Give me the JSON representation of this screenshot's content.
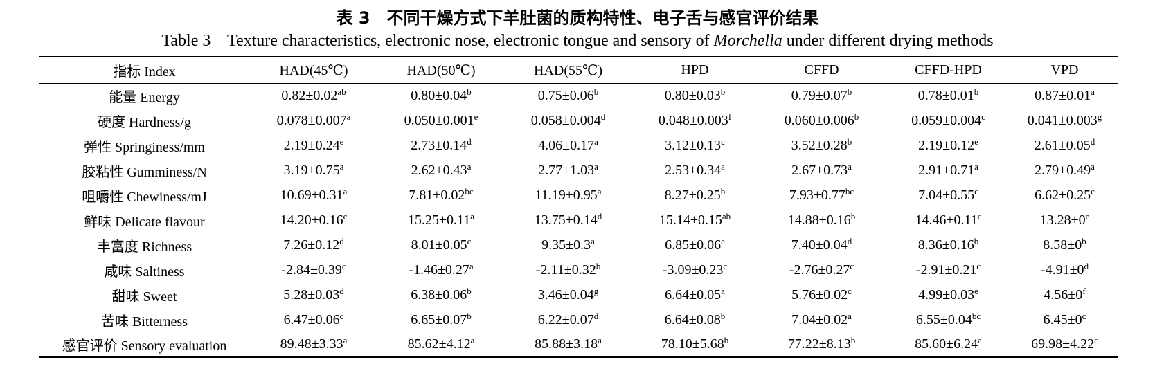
{
  "caption": {
    "chinese": "表 3　不同干燥方式下羊肚菌的质构特性、电子舌与感官评价结果",
    "english": {
      "label": "Table 3",
      "before": "Texture characteristics, electronic nose, electronic tongue and sensory of ",
      "italic": "Morchella",
      "after": " under different drying methods"
    }
  },
  "table": {
    "header": [
      "指标 Index",
      "HAD(45℃)",
      "HAD(50℃)",
      "HAD(55℃)",
      "HPD",
      "CFFD",
      "CFFD-HPD",
      "VPD"
    ],
    "rows": [
      {
        "label": "能量 Energy",
        "cells": [
          [
            "0.82±0.02",
            "ab"
          ],
          [
            "0.80±0.04",
            "b"
          ],
          [
            "0.75±0.06",
            "b"
          ],
          [
            "0.80±0.03",
            "b"
          ],
          [
            "0.79±0.07",
            "b"
          ],
          [
            "0.78±0.01",
            "b"
          ],
          [
            "0.87±0.01",
            "a"
          ]
        ]
      },
      {
        "label": "硬度 Hardness/g",
        "cells": [
          [
            "0.078±0.007",
            "a"
          ],
          [
            "0.050±0.001",
            "e"
          ],
          [
            "0.058±0.004",
            "d"
          ],
          [
            "0.048±0.003",
            "f"
          ],
          [
            "0.060±0.006",
            "b"
          ],
          [
            "0.059±0.004",
            "c"
          ],
          [
            "0.041±0.003",
            "g"
          ]
        ]
      },
      {
        "label": "弹性 Springiness/mm",
        "cells": [
          [
            "2.19±0.24",
            "e"
          ],
          [
            "2.73±0.14",
            "d"
          ],
          [
            "4.06±0.17",
            "a"
          ],
          [
            "3.12±0.13",
            "c"
          ],
          [
            "3.52±0.28",
            "b"
          ],
          [
            "2.19±0.12",
            "e"
          ],
          [
            "2.61±0.05",
            "d"
          ]
        ]
      },
      {
        "label": "胶粘性 Gumminess/N",
        "cells": [
          [
            "3.19±0.75",
            "a"
          ],
          [
            "2.62±0.43",
            "a"
          ],
          [
            "2.77±1.03",
            "a"
          ],
          [
            "2.53±0.34",
            "a"
          ],
          [
            "2.67±0.73",
            "a"
          ],
          [
            "2.91±0.71",
            "a"
          ],
          [
            "2.79±0.49",
            "a"
          ]
        ]
      },
      {
        "label": "咀嚼性 Chewiness/mJ",
        "cells": [
          [
            "10.69±0.31",
            "a"
          ],
          [
            "7.81±0.02",
            "bc"
          ],
          [
            "11.19±0.95",
            "a"
          ],
          [
            "8.27±0.25",
            "b"
          ],
          [
            "7.93±0.77",
            "bc"
          ],
          [
            "7.04±0.55",
            "c"
          ],
          [
            "6.62±0.25",
            "c"
          ]
        ]
      },
      {
        "label": "鲜味 Delicate flavour",
        "cells": [
          [
            "14.20±0.16",
            "c"
          ],
          [
            "15.25±0.11",
            "a"
          ],
          [
            "13.75±0.14",
            "d"
          ],
          [
            "15.14±0.15",
            "ab"
          ],
          [
            "14.88±0.16",
            "b"
          ],
          [
            "14.46±0.11",
            "c"
          ],
          [
            "13.28±0",
            "e"
          ]
        ]
      },
      {
        "label": "丰富度 Richness",
        "cells": [
          [
            "7.26±0.12",
            "d"
          ],
          [
            "8.01±0.05",
            "c"
          ],
          [
            "9.35±0.3",
            "a"
          ],
          [
            "6.85±0.06",
            "e"
          ],
          [
            "7.40±0.04",
            "d"
          ],
          [
            "8.36±0.16",
            "b"
          ],
          [
            "8.58±0",
            "b"
          ]
        ]
      },
      {
        "label": "咸味 Saltiness",
        "cells": [
          [
            "-2.84±0.39",
            "c"
          ],
          [
            "-1.46±0.27",
            "a"
          ],
          [
            "-2.11±0.32",
            "b"
          ],
          [
            "-3.09±0.23",
            "c"
          ],
          [
            "-2.76±0.27",
            "c"
          ],
          [
            "-2.91±0.21",
            "c"
          ],
          [
            "-4.91±0",
            "d"
          ]
        ]
      },
      {
        "label": "甜味 Sweet",
        "cells": [
          [
            "5.28±0.03",
            "d"
          ],
          [
            "6.38±0.06",
            "b"
          ],
          [
            "3.46±0.04",
            "g"
          ],
          [
            "6.64±0.05",
            "a"
          ],
          [
            "5.76±0.02",
            "c"
          ],
          [
            "4.99±0.03",
            "e"
          ],
          [
            "4.56±0",
            "f"
          ]
        ]
      },
      {
        "label": "苦味 Bitterness",
        "cells": [
          [
            "6.47±0.06",
            "c"
          ],
          [
            "6.65±0.07",
            "b"
          ],
          [
            "6.22±0.07",
            "d"
          ],
          [
            "6.64±0.08",
            "b"
          ],
          [
            "7.04±0.02",
            "a"
          ],
          [
            "6.55±0.04",
            "bc"
          ],
          [
            "6.45±0",
            "c"
          ]
        ]
      },
      {
        "label": "感官评价 Sensory evaluation",
        "cells": [
          [
            "89.48±3.33",
            "a"
          ],
          [
            "85.62±4.12",
            "a"
          ],
          [
            "85.88±3.18",
            "a"
          ],
          [
            "78.10±5.68",
            "b"
          ],
          [
            "77.22±8.13",
            "b"
          ],
          [
            "85.60±6.24",
            "a"
          ],
          [
            "69.98±4.22",
            "c"
          ]
        ]
      }
    ]
  }
}
